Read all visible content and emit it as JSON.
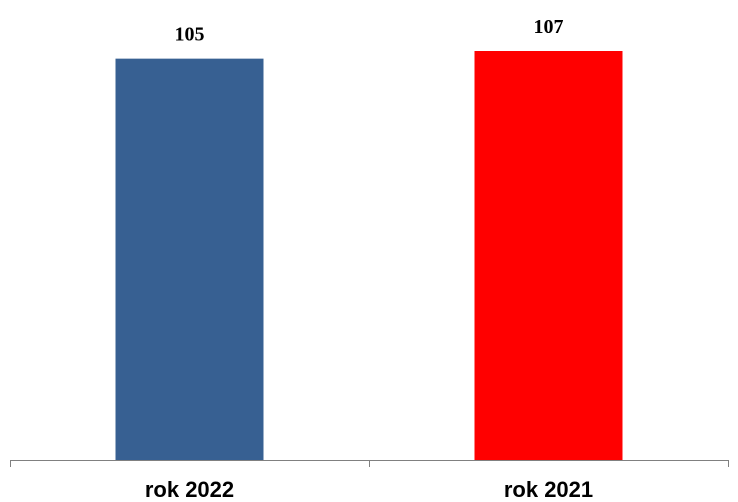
{
  "chart_data": {
    "type": "bar",
    "categories": [
      "rok 2022",
      "rok 2021"
    ],
    "values": [
      105,
      107
    ],
    "data_labels": [
      "105",
      "107"
    ],
    "colors": [
      "#376092",
      "#ff0000"
    ],
    "ylim": [
      0,
      107
    ],
    "grid": false,
    "legend": "none",
    "axis_color": "#808080"
  }
}
